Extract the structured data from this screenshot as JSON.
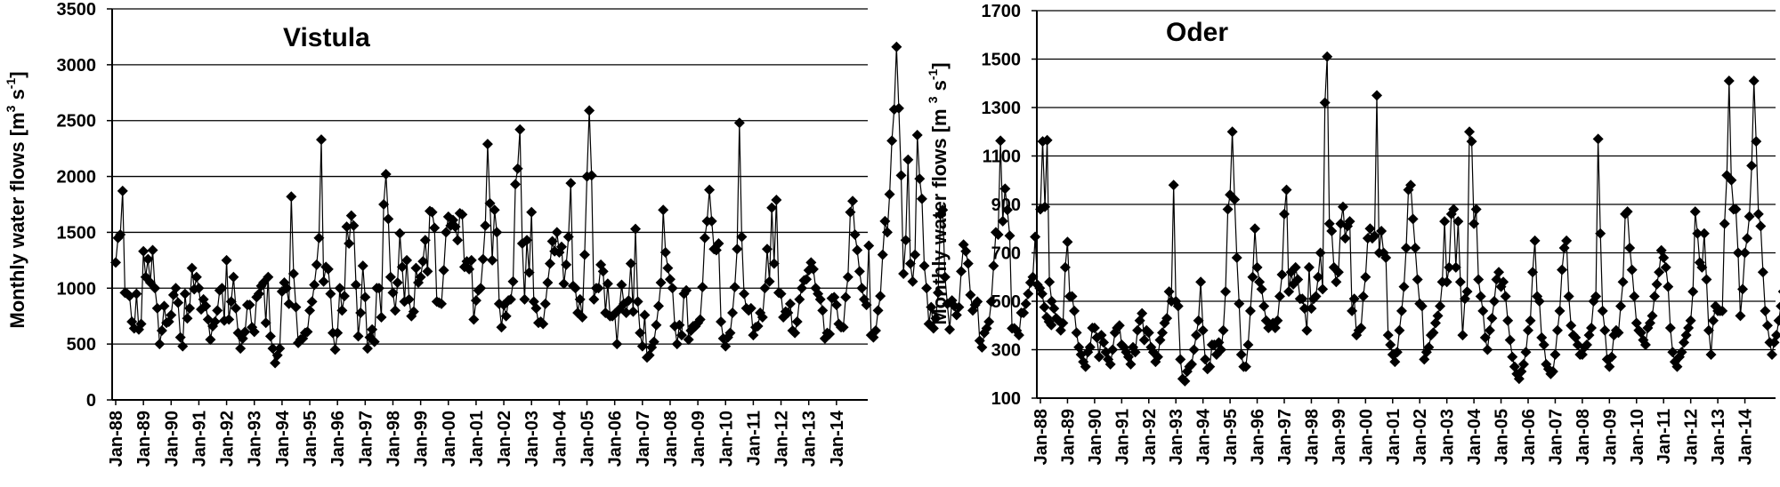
{
  "chart_data": [
    {
      "type": "line",
      "title": "Vistula",
      "ylabel": {
        "main": "Monthly water flows [m",
        "sup1": "3",
        "mid": " s",
        "sup2": "-1",
        "end": "]"
      },
      "ylim": [
        0,
        3500
      ],
      "yticks": [
        0,
        500,
        1000,
        1500,
        2000,
        2500,
        3000,
        3500
      ],
      "grid": "horizontal",
      "x_start": "Jan-88",
      "xticks": [
        "Jan-88",
        "Jan-89",
        "Jan-90",
        "Jan-91",
        "Jan-92",
        "Jan-93",
        "Jan-94",
        "Jan-95",
        "Jan-96",
        "Jan-97",
        "Jan-98",
        "Jan-99",
        "Jan-00",
        "Jan-01",
        "Jan-02",
        "Jan-03",
        "Jan-04",
        "Jan-05",
        "Jan-06",
        "Jan-07",
        "Jan-08",
        "Jan-09",
        "Jan-10",
        "Jan-11",
        "Jan-12",
        "Jan-13",
        "Jan-14"
      ],
      "series": [
        {
          "marker": "diamond",
          "values": [
            1230,
            1450,
            1480,
            1870,
            960,
            950,
            930,
            700,
            640,
            950,
            630,
            680,
            1330,
            1100,
            1260,
            1050,
            1340,
            1000,
            820,
            500,
            620,
            840,
            690,
            700,
            760,
            940,
            1000,
            870,
            560,
            480,
            950,
            730,
            820,
            1180,
            990,
            1100,
            1000,
            810,
            900,
            840,
            720,
            540,
            660,
            700,
            800,
            980,
            1000,
            710,
            1250,
            720,
            880,
            1100,
            820,
            600,
            460,
            550,
            610,
            850,
            850,
            650,
            610,
            920,
            950,
            1020,
            1050,
            690,
            1100,
            570,
            460,
            330,
            400,
            460,
            970,
            1050,
            1000,
            860,
            1820,
            1130,
            830,
            510,
            540,
            550,
            600,
            610,
            800,
            880,
            1030,
            1210,
            1450,
            2330,
            1060,
            1190,
            1170,
            950,
            600,
            450,
            600,
            1000,
            800,
            930,
            1550,
            1400,
            1650,
            1560,
            1030,
            570,
            780,
            1200,
            920,
            460,
            560,
            630,
            520,
            1000,
            1000,
            740,
            1750,
            2020,
            1620,
            1100,
            960,
            800,
            1050,
            1490,
            1190,
            880,
            1250,
            900,
            750,
            790,
            1180,
            1050,
            1100,
            1240,
            1430,
            1150,
            1690,
            1680,
            1540,
            880,
            870,
            860,
            1160,
            1500,
            1640,
            1560,
            1610,
            1550,
            1430,
            1670,
            1660,
            1190,
            1240,
            1170,
            1250,
            720,
            890,
            980,
            1000,
            1260,
            1560,
            2290,
            1760,
            1250,
            1700,
            1500,
            860,
            650,
            850,
            750,
            890,
            900,
            1060,
            1930,
            2070,
            2420,
            1400,
            900,
            1430,
            1140,
            1680,
            880,
            820,
            690,
            700,
            680,
            860,
            1050,
            1220,
            1420,
            1330,
            1500,
            1320,
            1370,
            1040,
            1210,
            1460,
            1940,
            1020,
            1000,
            780,
            900,
            740,
            1300,
            2000,
            2590,
            2010,
            900,
            1000,
            1000,
            1210,
            1150,
            780,
            1040,
            750,
            750,
            770,
            500,
            810,
            1030,
            860,
            780,
            890,
            1220,
            790,
            1530,
            880,
            600,
            480,
            760,
            380,
            400,
            470,
            520,
            670,
            840,
            1050,
            1700,
            1320,
            1180,
            1080,
            1000,
            660,
            500,
            670,
            580,
            950,
            980,
            540,
            620,
            660,
            660,
            690,
            720,
            1010,
            1450,
            1600,
            1880,
            1600,
            1350,
            1340,
            1400,
            700,
            550,
            480,
            560,
            600,
            780,
            1010,
            1350,
            2480,
            1460,
            950,
            820,
            800,
            820,
            580,
            650,
            660,
            780,
            740,
            1000,
            1350,
            1060,
            1720,
            1220,
            1790,
            960,
            950,
            740,
            790,
            780,
            860,
            620,
            600,
            700,
            900,
            1000,
            1070,
            1080,
            1160,
            1230,
            1170,
            1000,
            950,
            900,
            800,
            550,
            600,
            590,
            910,
            920,
            850,
            680,
            650,
            650,
            920,
            1100,
            1680,
            1780,
            1480,
            1340,
            1150,
            1000,
            900,
            850,
            1380,
            580,
            560,
            620,
            800,
            930,
            1300,
            1600,
            1500,
            1840,
            2320,
            2600,
            3160,
            2610,
            2010,
            1130,
            1430,
            2150,
            1220,
            1060,
            1300,
            2370,
            1980,
            1800,
            1200,
            1000,
            680,
            830,
            640,
            730,
            960,
            1660,
            1700,
            1100,
            860,
            630,
            890,
            840,
            760,
            830,
            1150,
            1390,
            1330,
            1220,
            940,
            800,
            850,
            880,
            530,
            470,
            600,
            640,
            700,
            880,
            1200,
            1500,
            1480,
            2320,
            1600,
            1890,
            1700,
            1470,
            640,
            640,
            620,
            580,
            780,
            780,
            860,
            950,
            1050,
            1100,
            1460,
            1030,
            1000,
            950,
            830,
            740,
            700,
            670
          ]
        }
      ]
    },
    {
      "type": "line",
      "title": "Oder",
      "ylabel": {
        "main": "Monthly water flows [m ",
        "sup1": "3",
        "mid": " s",
        "sup2": "-1",
        "end": "]"
      },
      "ylim": [
        100,
        1700
      ],
      "yticks": [
        100,
        300,
        500,
        700,
        900,
        1100,
        1300,
        1500,
        1700
      ],
      "grid": "horizontal",
      "x_start": "Jan-88",
      "xticks": [
        "Jan-88",
        "Jan-89",
        "Jan-90",
        "Jan-91",
        "Jan-92",
        "Jan-93",
        "Jan-94",
        "Jan-95",
        "Jan-96",
        "Jan-97",
        "Jan-98",
        "Jan-99",
        "Jan-00",
        "Jan-01",
        "Jan-02",
        "Jan-03",
        "Jan-04",
        "Jan-05",
        "Jan-06",
        "Jan-07",
        "Jan-08",
        "Jan-09",
        "Jan-10",
        "Jan-11",
        "Jan-12",
        "Jan-13",
        "Jan-14"
      ],
      "series": [
        {
          "marker": "diamond",
          "values": [
            880,
            1160,
            890,
            1165,
            580,
            500,
            470,
            430,
            420,
            380,
            410,
            640,
            745,
            520,
            520,
            460,
            370,
            310,
            280,
            250,
            230,
            290,
            310,
            390,
            390,
            350,
            270,
            360,
            330,
            290,
            260,
            240,
            300,
            370,
            390,
            400,
            320,
            310,
            290,
            270,
            240,
            310,
            290,
            380,
            420,
            450,
            340,
            380,
            370,
            310,
            290,
            250,
            270,
            340,
            370,
            410,
            430,
            540,
            500,
            980,
            500,
            480,
            260,
            180,
            170,
            210,
            230,
            240,
            300,
            360,
            420,
            580,
            380,
            260,
            220,
            230,
            320,
            320,
            280,
            330,
            300,
            380,
            540,
            880,
            940,
            1200,
            920,
            680,
            490,
            280,
            230,
            230,
            320,
            460,
            600,
            800,
            640,
            580,
            550,
            480,
            420,
            390,
            400,
            410,
            390,
            420,
            520,
            610,
            860,
            960,
            540,
            620,
            570,
            640,
            590,
            510,
            510,
            470,
            380,
            640,
            470,
            510,
            520,
            600,
            700,
            550,
            1320,
            1510,
            820,
            790,
            640,
            580,
            620,
            820,
            890,
            760,
            810,
            830,
            460,
            510,
            360,
            380,
            390,
            520,
            600,
            760,
            800,
            760,
            770,
            1350,
            700,
            790,
            700,
            680,
            360,
            320,
            280,
            250,
            290,
            380,
            460,
            560,
            720,
            960,
            980,
            840,
            720,
            590,
            490,
            480,
            260,
            290,
            310,
            360,
            370,
            410,
            440,
            480,
            580,
            830,
            580,
            640,
            860,
            880,
            640,
            830,
            580,
            360,
            510,
            540,
            1200,
            1160,
            820,
            880,
            590,
            520,
            460,
            350,
            300,
            380,
            430,
            500,
            590,
            620,
            560,
            580,
            520,
            420,
            340,
            270,
            230,
            200,
            180,
            210,
            240,
            290,
            380,
            420,
            620,
            750,
            520,
            500,
            350,
            320,
            240,
            220,
            200,
            210,
            280,
            380,
            460,
            630,
            720,
            750,
            520,
            400,
            360,
            350,
            320,
            280,
            280,
            310,
            320,
            360,
            390,
            500,
            520,
            1170,
            780,
            460,
            380,
            260,
            230,
            270,
            360,
            380,
            370,
            480,
            580,
            860,
            870,
            720,
            630,
            520,
            410,
            380,
            370,
            340,
            320,
            390,
            410,
            440,
            520,
            570,
            620,
            710,
            680,
            640,
            560,
            390,
            290,
            250,
            230,
            270,
            290,
            330,
            360,
            390,
            420,
            540,
            870,
            780,
            660,
            640,
            780,
            590,
            380,
            280,
            420,
            480,
            460,
            460,
            460,
            820,
            1020,
            1410,
            1000,
            880,
            880,
            700,
            440,
            550,
            700,
            760,
            850,
            1060,
            1410,
            1160,
            860,
            810,
            620,
            460,
            400,
            330,
            280,
            330,
            360,
            420,
            480,
            540,
            520,
            420,
            370,
            460,
            520,
            630,
            560,
            700,
            810,
            590,
            420,
            380,
            340,
            310,
            300,
            320,
            380,
            420,
            560,
            680,
            780,
            820,
            770,
            820,
            770,
            1070,
            820,
            480,
            380,
            400,
            430,
            420,
            400,
            410,
            420,
            430,
            440,
            450,
            460,
            420,
            380,
            340,
            300,
            290,
            330,
            380,
            410,
            390,
            370
          ]
        }
      ]
    }
  ]
}
